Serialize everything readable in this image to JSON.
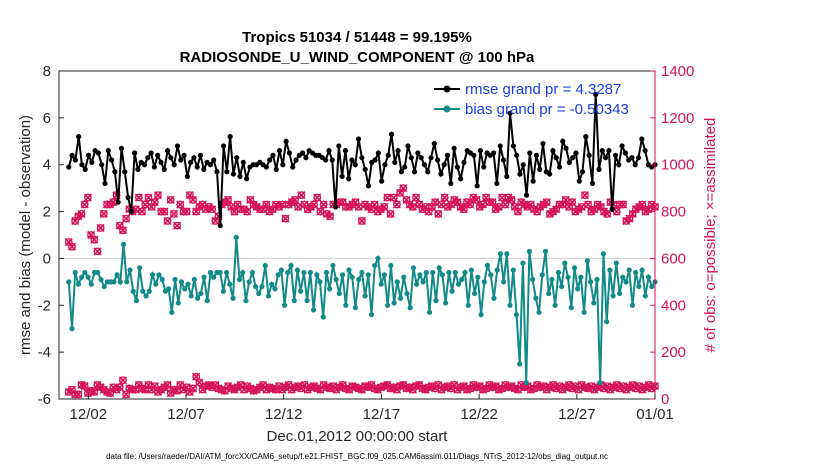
{
  "chart_data": {
    "type": "line",
    "title": "Tropics 51034 / 51448 = 99.195%",
    "subtitle": "RADIOSONDE_U_WIND_COMPONENT @ 100 hPa",
    "xlabel": "Dec.01,2012 00:00:00 start",
    "ylabel": "rmse and bias (model - observation)",
    "y2label": "# of obs: o=possible; ×=assimilated",
    "ylim": [
      -6,
      8
    ],
    "y2lim": [
      0,
      1400
    ],
    "xlim": [
      0.5,
      31.0
    ],
    "yticks": [
      "-6",
      "-4",
      "-2",
      "0",
      "2",
      "4",
      "6",
      "8"
    ],
    "y2ticks": [
      "0",
      "200",
      "400",
      "600",
      "800",
      "1000",
      "1200",
      "1400"
    ],
    "xticks": [
      {
        "day": 2,
        "label": "12/02"
      },
      {
        "day": 7,
        "label": "12/07"
      },
      {
        "day": 12,
        "label": "12/12"
      },
      {
        "day": 17,
        "label": "12/17"
      },
      {
        "day": 22,
        "label": "12/22"
      },
      {
        "day": 27,
        "label": "12/27"
      },
      {
        "day": 31,
        "label": "01/01"
      }
    ],
    "series": [
      {
        "name": "rmse",
        "legend": "rmse grand pr = 4.3287",
        "color": "#000000",
        "axis": "left",
        "values": [
          3.9,
          4.4,
          4.2,
          5.2,
          4.0,
          3.8,
          4.4,
          4.1,
          4.6,
          4.5,
          4.0,
          3.2,
          4.6,
          4.2,
          3.7,
          2.4,
          4.7,
          3.7,
          2.6,
          2.0,
          4.5,
          3.8,
          4.1,
          4.0,
          4.3,
          4.5,
          3.9,
          4.4,
          4.1,
          3.8,
          4.6,
          4.3,
          4.0,
          4.8,
          4.2,
          4.4,
          3.5,
          4.1,
          4.3,
          3.9,
          4.4,
          3.8,
          4.1,
          4.0,
          4.2,
          3.7,
          1.4,
          4.8,
          3.7,
          5.2,
          3.6,
          4.3,
          3.5,
          4.1,
          3.4,
          3.9,
          4.0,
          4.0,
          4.1,
          4.0,
          3.9,
          4.2,
          4.4,
          3.8,
          4.6,
          4.0,
          5.0,
          4.5,
          3.9,
          4.2,
          4.4,
          4.5,
          4.3,
          4.6,
          4.5,
          4.4,
          4.4,
          4.3,
          4.2,
          4.6,
          4.2,
          2.2,
          4.8,
          3.5,
          4.6,
          3.4,
          4.2,
          4.0,
          5.1,
          4.3,
          3.8,
          3.1,
          4.1,
          4.2,
          4.5,
          3.3,
          4.0,
          4.4,
          5.3,
          4.1,
          4.6,
          3.7,
          3.9,
          4.8,
          4.3,
          3.7,
          4.5,
          4.3,
          4.0,
          3.7,
          4.3,
          4.9,
          4.2,
          3.6,
          4.0,
          4.4,
          3.2,
          4.7,
          3.9,
          3.4,
          4.1,
          4.6,
          4.5,
          4.4,
          3.1,
          4.6,
          3.9,
          4.5,
          4.4,
          4.5,
          3.2,
          4.8,
          4.2,
          3.5,
          6.2,
          4.8,
          4.4,
          3.6,
          4.0,
          2.7,
          4.5,
          3.3,
          4.4,
          3.8,
          4.9,
          3.7,
          3.6,
          4.6,
          4.3,
          3.9,
          5.0,
          4.7,
          4.1,
          4.3,
          4.5,
          3.3,
          3.7,
          5.2,
          4.4,
          3.2,
          7.0,
          3.8,
          4.6,
          4.3,
          4.6,
          2.1,
          4.4,
          4.0,
          4.8,
          4.5,
          4.2,
          4.3,
          4.0,
          4.3,
          5.1,
          4.6,
          4.0,
          3.9,
          4.0
        ]
      },
      {
        "name": "bias",
        "legend": "bias grand pr = -0.50343",
        "color": "#138a8a",
        "axis": "left",
        "values": [
          -1.0,
          -3.0,
          -0.6,
          -1.1,
          -0.8,
          -0.6,
          -0.8,
          -1.1,
          -0.6,
          -0.6,
          -0.9,
          -1.2,
          -1.0,
          -1.0,
          -1.0,
          -0.7,
          -1.0,
          0.6,
          -1.0,
          -0.5,
          -1.4,
          -1.8,
          -0.4,
          -1.4,
          -1.6,
          -1.4,
          -0.7,
          -1.1,
          -0.7,
          -0.9,
          -1.4,
          -1.3,
          -2.3,
          -0.9,
          -1.9,
          -1.0,
          -1.3,
          -1.1,
          -1.6,
          -0.9,
          -1.7,
          -1.5,
          -0.8,
          -1.8,
          -0.6,
          -0.8,
          -0.6,
          -0.6,
          -1.4,
          -0.6,
          -1.1,
          -1.7,
          0.9,
          -0.9,
          -0.6,
          -1.8,
          -1.0,
          -0.6,
          -1.2,
          -1.5,
          -1.2,
          -0.3,
          -1.6,
          -1.1,
          -1.3,
          -0.7,
          -0.5,
          -2.0,
          -0.6,
          -0.3,
          -1.8,
          -0.5,
          -1.4,
          -0.6,
          -1.8,
          -0.6,
          -2.2,
          -0.7,
          -1.0,
          -2.5,
          -0.6,
          -1.3,
          -0.3,
          -0.9,
          -1.5,
          -0.7,
          -2.0,
          -0.5,
          -0.8,
          -2.1,
          -0.9,
          -0.6,
          -1.6,
          -0.7,
          -2.4,
          -0.3,
          0.0,
          -1.1,
          -0.7,
          -2.0,
          -0.3,
          -1.9,
          -1.0,
          -1.7,
          -0.8,
          -1.5,
          -2.1,
          -0.4,
          -1.1,
          -0.7,
          -1.0,
          -0.6,
          -2.3,
          -0.6,
          -1.8,
          -0.4,
          -0.7,
          -1.9,
          -0.6,
          -1.4,
          -0.6,
          -1.1,
          -0.9,
          -0.6,
          -2.0,
          -0.5,
          -1.5,
          -0.8,
          -2.4,
          -1.0,
          -0.3,
          -0.7,
          -1.7,
          -0.5,
          0.2,
          -1.0,
          0.2,
          -2.0,
          -0.5,
          -2.4,
          -4.5,
          -0.2,
          -5.3,
          0.3,
          -0.9,
          -1.7,
          -2.3,
          -0.7,
          0.3,
          -1.5,
          -0.9,
          -2.0,
          -0.6,
          -1.2,
          -0.2,
          -0.8,
          -2.1,
          -0.4,
          -1.3,
          -0.8,
          -2.3,
          -0.1,
          -1.0,
          -1.9,
          -0.9,
          -5.3,
          0.2,
          -2.7,
          -0.5,
          -1.6,
          -0.2,
          -1.5,
          -0.8,
          -1.0,
          -0.5,
          -2.0,
          -0.6,
          -1.2,
          -0.5,
          -1.6,
          -0.8,
          -1.2,
          -1.0
        ]
      }
    ],
    "obs_possible": {
      "color": "#d6125a",
      "axis": "right",
      "upper": [
        670,
        650,
        760,
        780,
        790,
        830,
        860,
        700,
        680,
        630,
        730,
        790,
        830,
        830,
        840,
        870,
        740,
        720,
        770,
        810,
        800,
        810,
        860,
        800,
        830,
        860,
        820,
        840,
        870,
        800,
        800,
        760,
        850,
        790,
        740,
        830,
        800,
        800,
        870,
        850,
        800,
        820,
        830,
        810,
        820,
        810,
        760,
        780,
        830,
        840,
        850,
        820,
        800,
        830,
        810,
        810,
        800,
        850,
        830,
        820,
        810,
        810,
        830,
        800,
        810,
        830,
        820,
        830,
        770,
        830,
        840,
        850,
        820,
        870,
        830,
        810,
        820,
        830,
        860,
        800,
        830,
        790,
        780,
        830,
        830,
        840,
        840,
        820,
        820,
        830,
        840,
        820,
        760,
        830,
        820,
        810,
        830,
        800,
        810,
        820,
        860,
        790,
        860,
        830,
        880,
        900,
        850,
        830,
        820,
        860,
        830,
        810,
        820,
        800,
        820,
        840,
        790,
        830,
        860,
        820,
        830,
        850,
        840,
        820,
        810,
        840,
        830,
        860,
        850,
        820,
        830,
        860,
        840,
        840,
        810,
        820,
        860,
        830,
        860,
        850,
        820,
        800,
        840,
        830,
        820,
        830,
        810,
        800,
        820,
        830,
        840,
        790,
        800,
        810,
        830,
        830,
        850,
        820,
        840,
        800,
        810,
        820,
        870,
        830,
        800,
        810,
        830,
        820,
        800,
        790,
        840,
        830,
        800,
        830,
        830,
        760,
        770,
        790,
        810,
        820,
        830,
        800,
        810,
        830,
        820
      ],
      "lower": [
        30,
        40,
        20,
        20,
        60,
        55,
        25,
        35,
        30,
        60,
        50,
        40,
        30,
        25,
        50,
        40,
        50,
        80,
        20,
        45,
        40,
        40,
        60,
        45,
        40,
        60,
        40,
        55,
        30,
        40,
        50,
        60,
        25,
        40,
        35,
        60,
        40,
        50,
        30,
        45,
        95,
        70,
        40,
        55,
        60,
        50,
        60,
        45,
        40,
        35,
        55,
        45,
        40,
        50,
        60,
        40,
        55,
        45,
        35,
        40,
        50,
        60,
        40,
        50,
        45,
        40,
        55,
        40,
        50,
        60,
        40,
        50,
        55,
        45,
        60,
        40,
        50,
        55,
        45,
        40,
        60,
        50,
        45,
        55,
        40,
        50,
        60,
        45,
        40,
        55,
        50,
        45,
        40,
        55,
        50,
        60,
        45,
        40,
        50,
        55,
        60,
        45,
        50,
        40,
        55,
        60,
        45,
        50,
        40,
        55,
        60,
        45,
        40,
        50,
        55,
        45,
        60,
        40,
        50,
        55,
        45,
        60,
        40,
        50,
        55,
        40,
        45,
        60,
        50,
        55,
        40,
        45,
        60,
        50,
        55,
        40,
        45,
        60,
        50,
        55,
        45,
        40,
        60,
        50,
        55,
        40,
        45,
        60,
        50,
        55,
        40,
        50,
        60,
        45,
        55,
        40,
        50,
        60,
        45,
        55,
        40,
        60,
        50,
        45,
        55,
        40,
        50,
        60,
        45,
        55,
        40,
        50,
        60,
        45,
        55,
        40,
        50,
        60,
        45,
        55,
        40,
        50,
        60,
        45,
        55
      ]
    },
    "footer": "data file: /Users/raeder/DAI/ATM_forcXX/CAM6_setup/f.e21.FHIST_BGC.f09_025.CAM6assim.011/Diags_NTrS_2012-12/obs_diag_output.nc"
  }
}
